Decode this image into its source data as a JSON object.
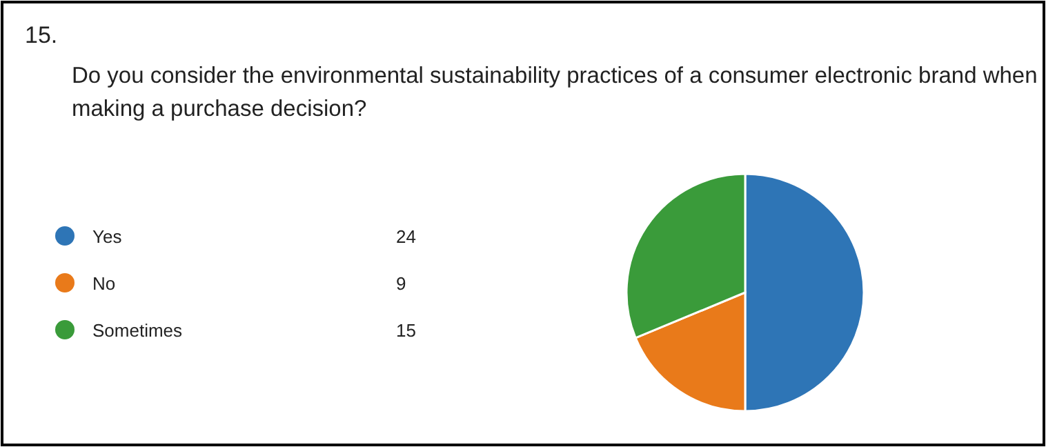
{
  "chart_data": {
    "type": "pie",
    "title": "15.",
    "subtitle": "Do you consider the environmental sustainability practices of a consumer electronic brand when making a purchase decision?",
    "categories": [
      "Yes",
      "No",
      "Sometimes"
    ],
    "values": [
      24,
      9,
      15
    ],
    "colors": [
      "#2e75b6",
      "#e97a1a",
      "#3a9b3a"
    ],
    "data_labels": true,
    "legend": "left"
  }
}
